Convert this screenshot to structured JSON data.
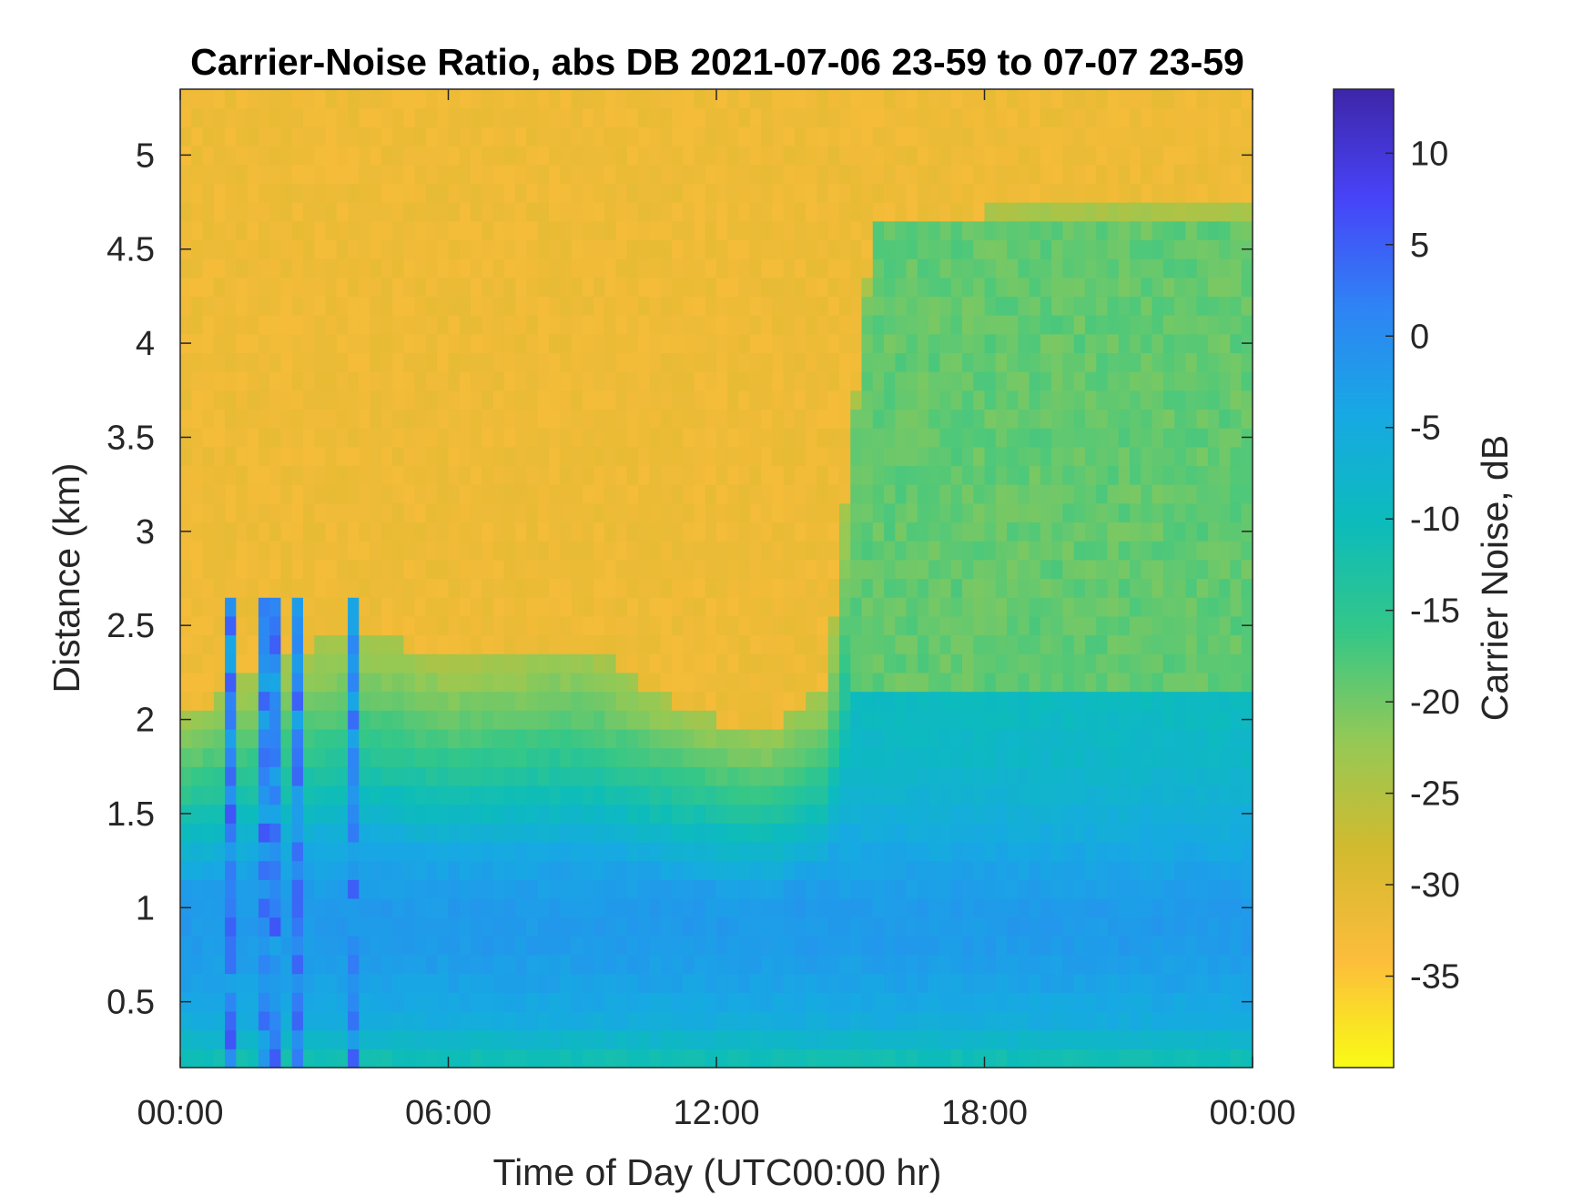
{
  "chart_data": {
    "type": "heatmap",
    "title": "Carrier-Noise Ratio, abs DB 2021-07-06 23-59 to 07-07 23-59",
    "xlabel": "Time of Day (UTC00:00 hr)",
    "ylabel": "Distance (km)",
    "colorbar_label": "Carrier Noise, dB",
    "x_ticks": [
      "00:00",
      "06:00",
      "12:00",
      "18:00",
      "00:00"
    ],
    "x_tick_hours": [
      0,
      6,
      12,
      18,
      24
    ],
    "xlim_hours": [
      0,
      24
    ],
    "y_ticks": [
      "0.5",
      "1",
      "1.5",
      "2",
      "2.5",
      "3",
      "3.5",
      "4",
      "4.5",
      "5"
    ],
    "y_tick_values": [
      0.5,
      1,
      1.5,
      2,
      2.5,
      3,
      3.5,
      4,
      4.5,
      5
    ],
    "ylim": [
      0.15,
      5.35
    ],
    "colorbar_ticks": [
      "10",
      "5",
      "0",
      "-5",
      "-10",
      "-15",
      "-20",
      "-25",
      "-30",
      "-35"
    ],
    "colorbar_tick_values": [
      10,
      5,
      0,
      -5,
      -10,
      -15,
      -20,
      -25,
      -30,
      -35
    ],
    "clim": [
      -40,
      13.5
    ],
    "colormap_reversed": true,
    "colormap": [
      "#3e26a8",
      "#4743f8",
      "#2f83f5",
      "#17a9e3",
      "#0cbcbb",
      "#35c787",
      "#95c955",
      "#d3ba2e",
      "#fcbc3c",
      "#f9fb15"
    ],
    "grid": false,
    "boundary_layer_top_km": [
      {
        "hour": 0,
        "km": 2.0
      },
      {
        "hour": 2,
        "km": 2.3
      },
      {
        "hour": 4,
        "km": 2.5
      },
      {
        "hour": 6,
        "km": 2.3
      },
      {
        "hour": 9,
        "km": 2.4
      },
      {
        "hour": 11,
        "km": 2.1
      },
      {
        "hour": 13,
        "km": 1.9
      },
      {
        "hour": 14.5,
        "km": 2.2
      },
      {
        "hour": 15.5,
        "km": 4.6
      },
      {
        "hour": 18,
        "km": 4.7
      },
      {
        "hour": 21,
        "km": 4.7
      },
      {
        "hour": 24,
        "km": 4.7
      }
    ],
    "sample_values_db": [
      {
        "hour": 3,
        "km": 4.5,
        "db": -32
      },
      {
        "hour": 3,
        "km": 1.0,
        "db": -6
      },
      {
        "hour": 12,
        "km": 0.8,
        "db": -3
      },
      {
        "hour": 12,
        "km": 3.5,
        "db": -32
      },
      {
        "hour": 18,
        "km": 1.2,
        "db": -6
      },
      {
        "hour": 18,
        "km": 3.5,
        "db": -19
      },
      {
        "hour": 3.7,
        "km": 1.65,
        "db": 10
      },
      {
        "hour": 1.5,
        "km": 2.2,
        "db": 3
      }
    ]
  }
}
